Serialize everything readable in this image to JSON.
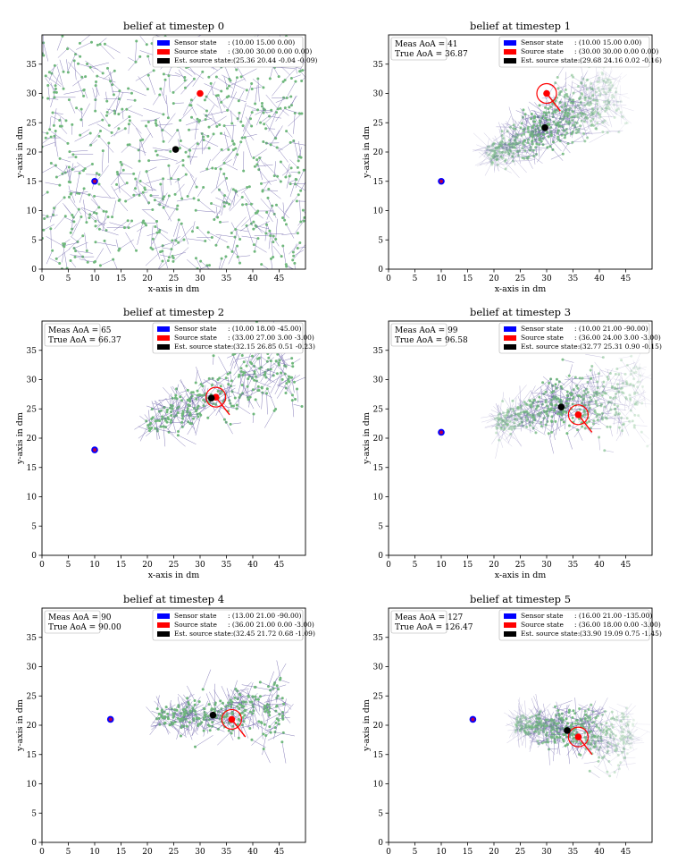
{
  "figure": {
    "xlabel": "x-axis in dm",
    "ylabel": "y-axis in dm",
    "xticks": [
      0,
      5,
      10,
      15,
      20,
      25,
      30,
      35,
      40,
      45
    ],
    "yticks": [
      0,
      5,
      10,
      15,
      20,
      25,
      30,
      35
    ],
    "legend_labels": [
      "Sensor state",
      "Source state",
      "Est. source state:"
    ],
    "colors": {
      "sensor": "#0000ff",
      "source": "#ff0000",
      "estimate": "#000000",
      "particle": "#6fb87c",
      "particle_heading": "#6a5fa8"
    }
  },
  "chart_data": [
    {
      "type": "scatter",
      "title": "belief at timestep 0",
      "meas_aoa": null,
      "true_aoa": null,
      "sensor_text": ": (10.00 15.00 0.00)",
      "source_text": ": (30.00 30.00 0.00 0.00)",
      "estimate_text": "(25.36 20.44 -0.04 -0.09)",
      "xlim": [
        0,
        50
      ],
      "ylim": [
        0,
        40
      ],
      "sensor": {
        "x": 10,
        "y": 15
      },
      "source": {
        "x": 30,
        "y": 30
      },
      "estimate": {
        "x": 25.36,
        "y": 20.44
      },
      "particles": {
        "distribution": "uniform",
        "count": 600,
        "fade": false
      }
    },
    {
      "type": "scatter",
      "title": "belief at timestep 1",
      "meas_aoa": "Meas AoA = 41",
      "true_aoa": "True AoA   = 36.87",
      "sensor_text": ": (10.00 15.00 0.00)",
      "source_text": ": (30.00 30.00 0.00 0.00)",
      "estimate_text": "(29.68 24.16 0.02 -0.16)",
      "xlim": [
        0,
        50
      ],
      "ylim": [
        0,
        40
      ],
      "sensor": {
        "x": 10,
        "y": 15
      },
      "source": {
        "x": 30,
        "y": 30
      },
      "estimate": {
        "x": 29.68,
        "y": 24.16
      },
      "particles": {
        "distribution": "cone",
        "count": 500,
        "fade": true
      }
    },
    {
      "type": "scatter",
      "title": "belief at timestep 2",
      "meas_aoa": "Meas AoA = 65",
      "true_aoa": "True AoA   = 66.37",
      "sensor_text": ": (10.00 18.00 -45.00)",
      "source_text": ": (33.00 27.00 3.00 -3.00)",
      "estimate_text": "(32.15 26.85 0.51 -0.23)",
      "xlim": [
        0,
        50
      ],
      "ylim": [
        0,
        40
      ],
      "sensor": {
        "x": 10,
        "y": 18
      },
      "source": {
        "x": 33,
        "y": 27
      },
      "estimate": {
        "x": 32.15,
        "y": 26.85
      },
      "particles": {
        "distribution": "cone",
        "count": 260,
        "fade": false
      }
    },
    {
      "type": "scatter",
      "title": "belief at timestep 3",
      "meas_aoa": "Meas AoA = 99",
      "true_aoa": "True AoA   = 96.58",
      "sensor_text": ": (10.00 21.00 -90.00)",
      "source_text": ": (36.00 24.00 3.00 -3.00)",
      "estimate_text": "(32.77 25.31 0.90 -0.15)",
      "xlim": [
        0,
        50
      ],
      "ylim": [
        0,
        40
      ],
      "sensor": {
        "x": 10,
        "y": 21
      },
      "source": {
        "x": 36,
        "y": 24
      },
      "estimate": {
        "x": 32.77,
        "y": 25.31
      },
      "particles": {
        "distribution": "cone",
        "count": 420,
        "fade": true
      }
    },
    {
      "type": "scatter",
      "title": "belief at timestep 4",
      "meas_aoa": "Meas AoA = 90",
      "true_aoa": "True AoA   = 90.00",
      "sensor_text": ": (13.00 21.00 -90.00)",
      "source_text": ": (36.00 21.00 0.00 -3.00)",
      "estimate_text": "(32.45 21.72 0.68 -1.09)",
      "xlim": [
        0,
        50
      ],
      "ylim": [
        0,
        40
      ],
      "sensor": {
        "x": 13,
        "y": 21
      },
      "source": {
        "x": 36,
        "y": 21
      },
      "estimate": {
        "x": 32.45,
        "y": 21.72
      },
      "particles": {
        "distribution": "cone",
        "count": 260,
        "fade": false
      }
    },
    {
      "type": "scatter",
      "title": "belief at timestep 5",
      "meas_aoa": "Meas AoA = 127",
      "true_aoa": "True AoA   = 126.47",
      "sensor_text": ": (16.00 21.00 -135.00)",
      "source_text": ": (36.00 18.00 0.00 -3.00)",
      "estimate_text": "(33.90 19.09 0.75 -1.45)",
      "xlim": [
        0,
        50
      ],
      "ylim": [
        0,
        40
      ],
      "sensor": {
        "x": 16,
        "y": 21
      },
      "source": {
        "x": 36,
        "y": 18
      },
      "estimate": {
        "x": 33.9,
        "y": 19.09
      },
      "particles": {
        "distribution": "cone",
        "count": 420,
        "fade": true
      }
    }
  ]
}
